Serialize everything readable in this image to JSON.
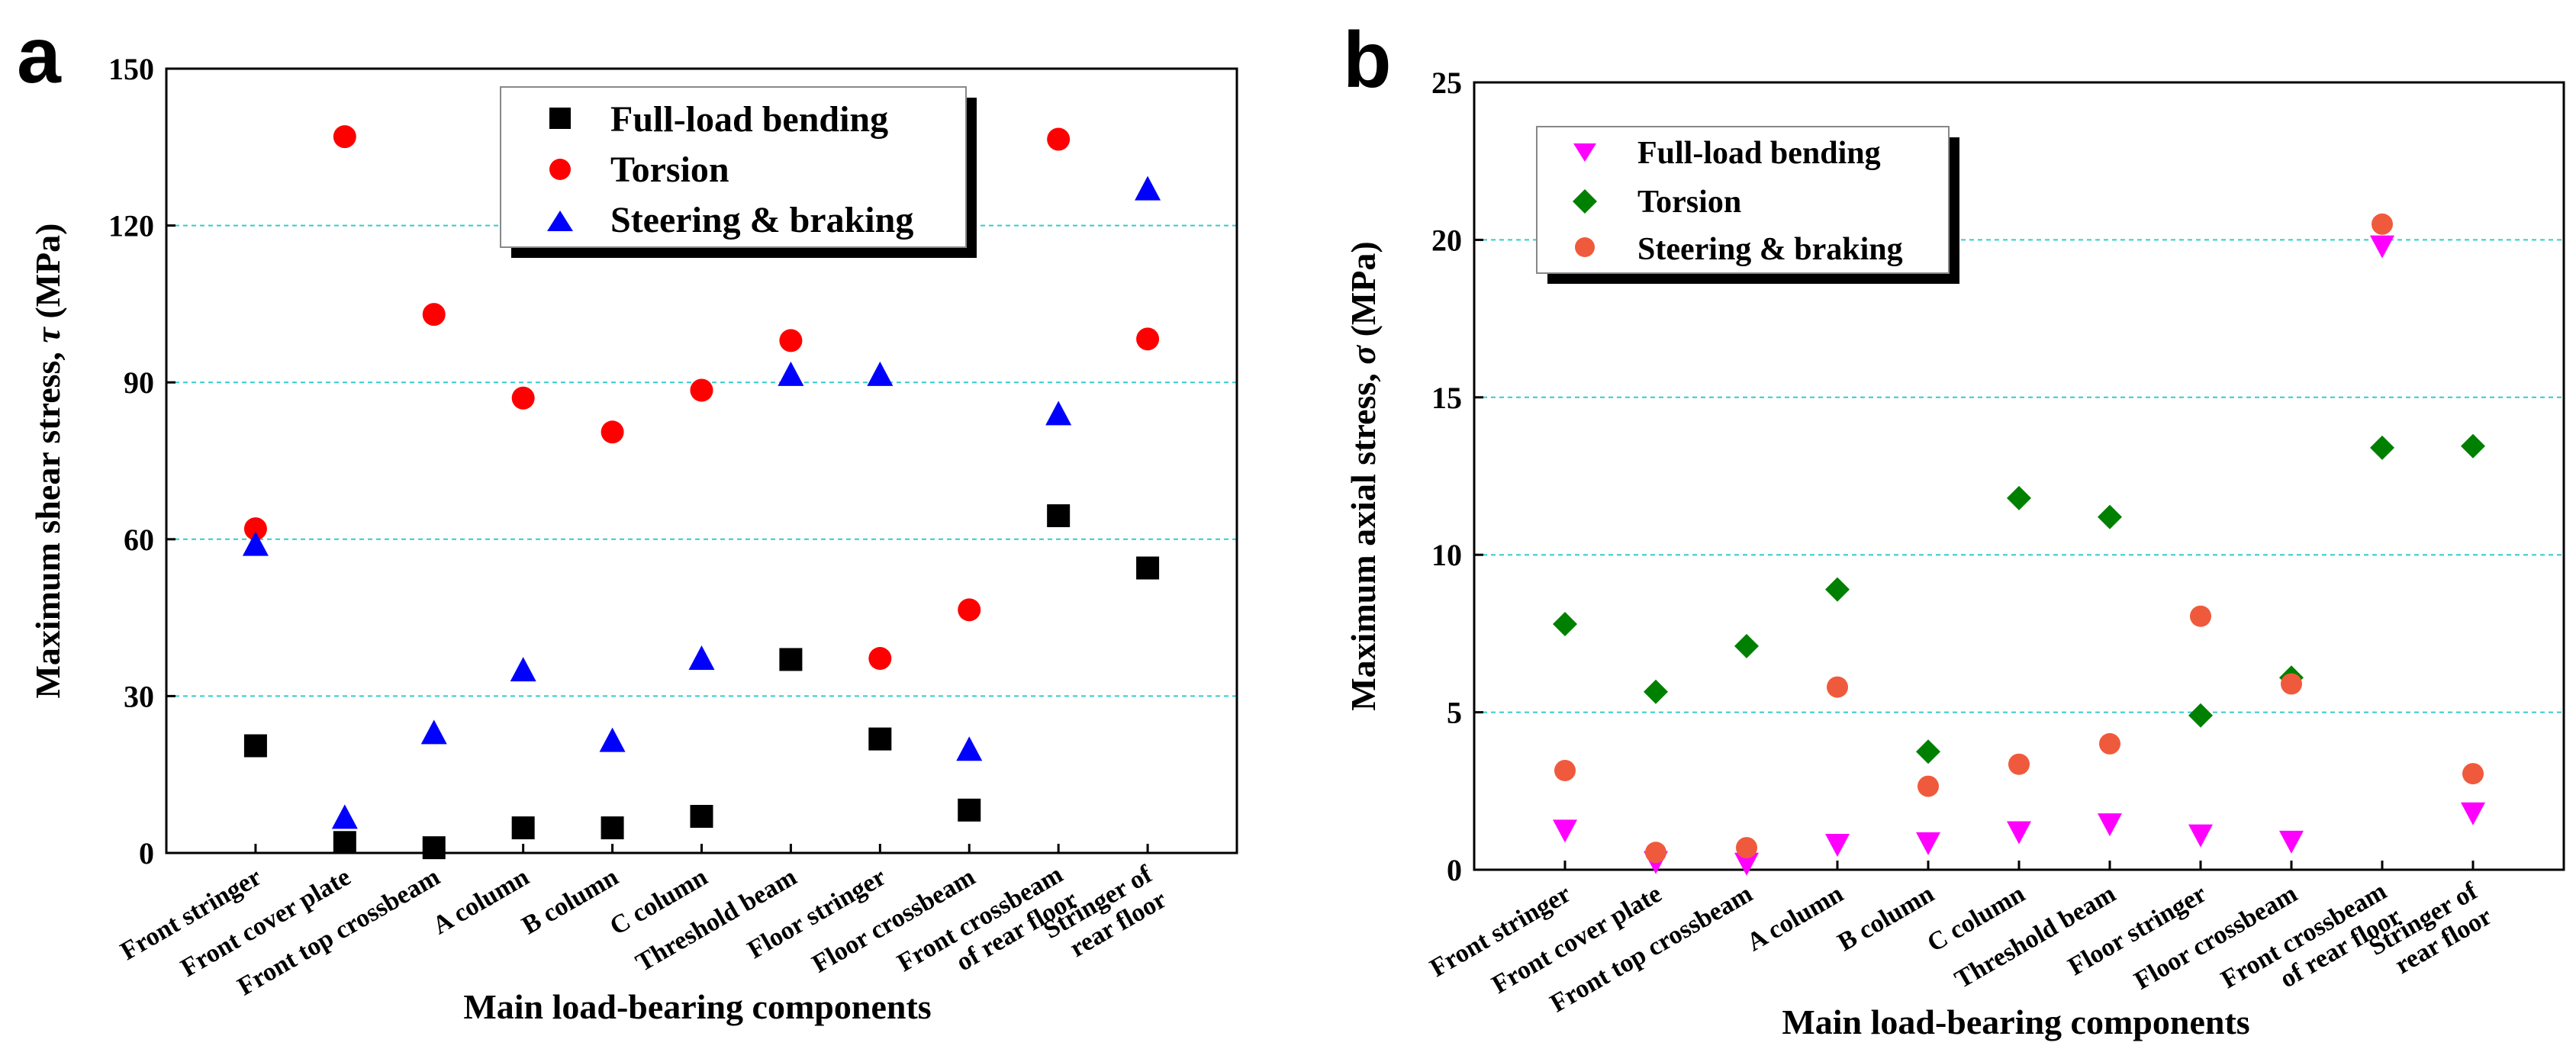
{
  "chart_data": [
    {
      "panel_label": "a",
      "type": "scatter",
      "ylabel_main": "Maximum shear stress, ",
      "ylabel_symbol": "τ",
      "ylabel_unit": " (MPa)",
      "xlabel": "Main load-bearing components",
      "ylim": [
        0,
        150
      ],
      "yticks": [
        "0",
        "30",
        "60",
        "90",
        "120",
        "150"
      ],
      "grid": "horizontal dashed, cyan",
      "legend_position": "top-center",
      "categories": [
        [
          "Front stringer"
        ],
        [
          "Front cover plate"
        ],
        [
          "Front top crossbeam"
        ],
        [
          "A column"
        ],
        [
          "B column"
        ],
        [
          "C column"
        ],
        [
          "Threshold beam"
        ],
        [
          "Floor stringer"
        ],
        [
          "Floor crossbeam"
        ],
        [
          "Front crossbeam",
          "of rear floor"
        ],
        [
          "Stringer of",
          "rear floor"
        ]
      ],
      "series": [
        {
          "name": "Full-load bending",
          "marker": "square",
          "color": "#000000",
          "values": [
            20.5,
            2,
            1,
            4.8,
            4.8,
            7,
            37,
            21.8,
            8.2,
            64.5,
            54.5
          ]
        },
        {
          "name": "Torsion",
          "marker": "circle",
          "color": "#ff0000",
          "values": [
            62,
            137,
            103,
            87,
            80.5,
            88.5,
            98,
            37.2,
            46.5,
            136.5,
            98.3
          ]
        },
        {
          "name": "Steering & braking",
          "marker": "triangle",
          "color": "#0000ff",
          "values": [
            59,
            6.8,
            23,
            35,
            21.5,
            37.2,
            91.5,
            91.5,
            19.8,
            84,
            127
          ]
        }
      ]
    },
    {
      "panel_label": "b",
      "type": "scatter",
      "ylabel_main": "Maximum axial stress, ",
      "ylabel_symbol": "σ",
      "ylabel_unit": " (MPa)",
      "xlabel": "Main load-bearing components",
      "ylim": [
        0,
        25
      ],
      "yticks": [
        "0",
        "5",
        "10",
        "15",
        "20",
        "25"
      ],
      "grid": "horizontal dashed, cyan",
      "legend_position": "top-left",
      "categories": [
        [
          "Front stringer"
        ],
        [
          "Front cover plate"
        ],
        [
          "Front top crossbeam"
        ],
        [
          "A column"
        ],
        [
          "B column"
        ],
        [
          "C column"
        ],
        [
          "Threshold beam"
        ],
        [
          "Floor stringer"
        ],
        [
          "Floor crossbeam"
        ],
        [
          "Front crossbeam",
          "of rear floor"
        ],
        [
          "Stringer of",
          "rear floor"
        ]
      ],
      "series": [
        {
          "name": "Full-load bending",
          "marker": "triangle-down",
          "color": "#ff00ff",
          "values": [
            1.25,
            0.25,
            0.2,
            0.8,
            0.85,
            1.2,
            1.45,
            1.1,
            0.9,
            19.8,
            1.8
          ]
        },
        {
          "name": "Torsion",
          "marker": "diamond",
          "color": "#008000",
          "values": [
            7.8,
            5.65,
            7.1,
            8.9,
            3.75,
            11.8,
            11.2,
            4.9,
            6.1,
            13.4,
            13.45
          ]
        },
        {
          "name": "Steering & braking",
          "marker": "circle",
          "color": "#f05a3c",
          "values": [
            3.15,
            0.55,
            0.7,
            5.8,
            2.65,
            3.35,
            4.0,
            8.05,
            5.9,
            20.5,
            3.05
          ]
        }
      ]
    }
  ]
}
